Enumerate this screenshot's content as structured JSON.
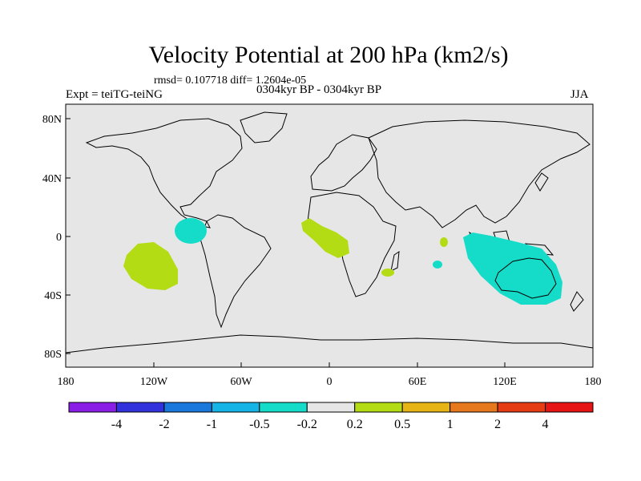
{
  "title": "Velocity Potential at 200 hPa (km2/s)",
  "stats_line": "rmsd= 0.107718 diff= 1.2604e-05",
  "experiment": "Expt = teiTG-teiNG",
  "period": "0304kyr BP - 0304kyr BP",
  "season": "JJA",
  "map": {
    "lon_ticks": [
      "180",
      "120W",
      "60W",
      "0",
      "60E",
      "120E",
      "180"
    ],
    "lat_ticks": [
      "80N",
      "40N",
      "0",
      "40S",
      "80S"
    ],
    "background": "#e6e6e6"
  },
  "colorbar": {
    "colors": [
      "#8a1ee6",
      "#3232dc",
      "#1a78dc",
      "#14b4e6",
      "#14dcc8",
      "#e6e6e6",
      "#b4dc14",
      "#e6b414",
      "#e6781e",
      "#e63c14",
      "#e61414"
    ],
    "labels": [
      "-4",
      "-2",
      "-1",
      "-0.5",
      "-0.2",
      "0.2",
      "0.5",
      "1",
      "2",
      "4"
    ]
  },
  "anomaly_colors": {
    "negative": "#14dcc8",
    "positive": "#b4dc14"
  }
}
